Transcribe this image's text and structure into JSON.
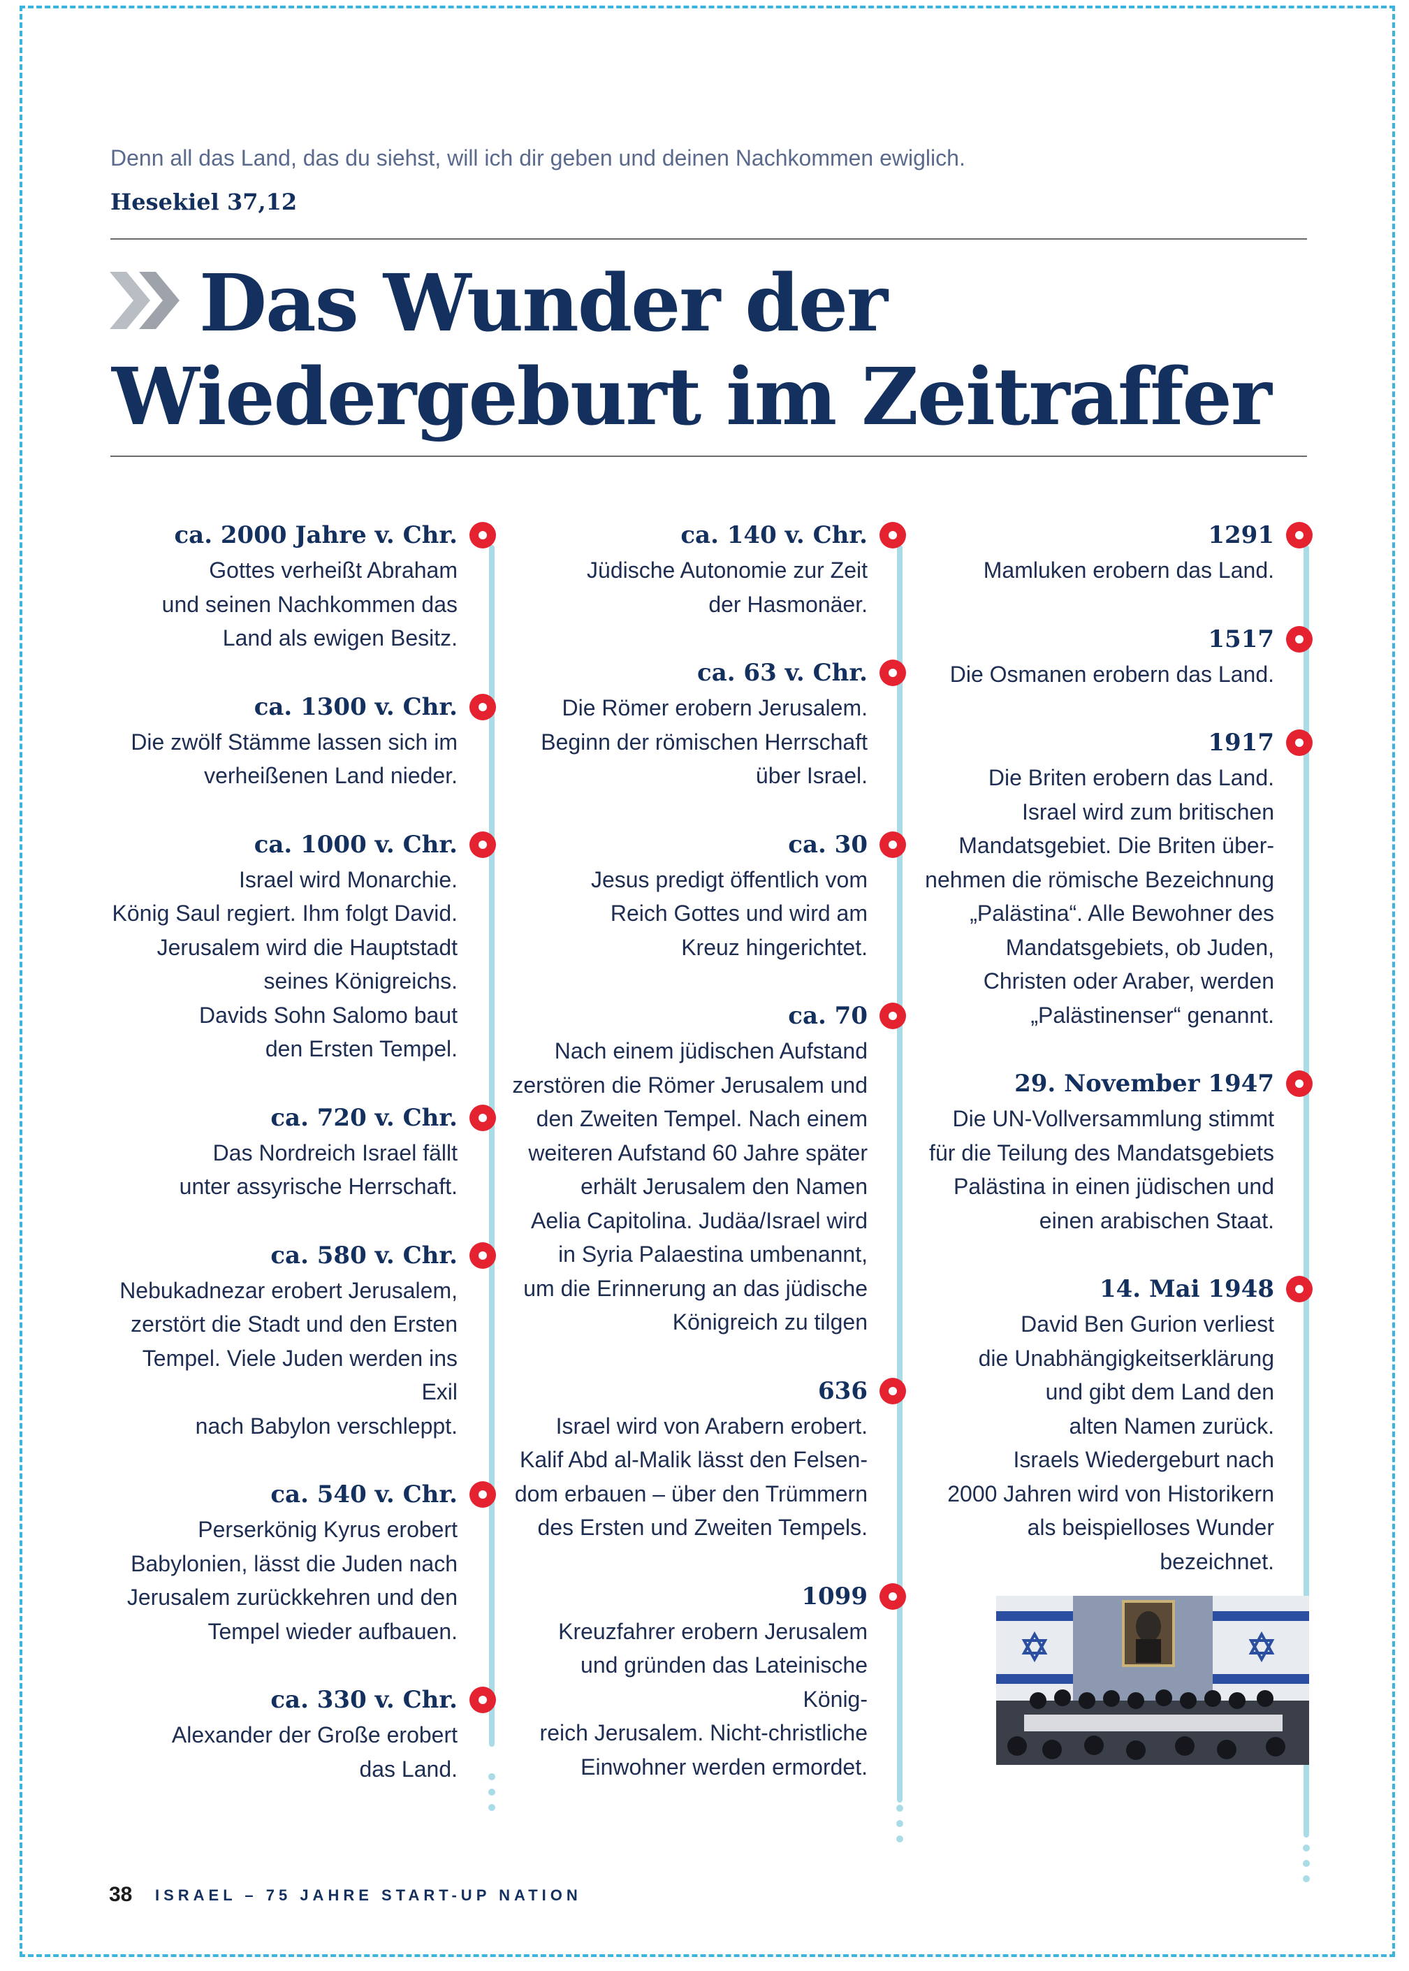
{
  "quote": {
    "text": "Denn all das Land, das du siehst, will ich dir geben und deinen Nachkommen ewiglich.",
    "reference": "Hesekiel 37,12"
  },
  "title": {
    "line1": "Das Wunder der",
    "line2": "Wiedergeburt im Zeitraffer"
  },
  "columns": [
    [
      {
        "date": "ca. 2000 Jahre v. Chr.",
        "text": "Gottes verheißt Abraham\nund seinen Nachkommen das\nLand als ewigen Besitz."
      },
      {
        "date": "ca. 1300 v. Chr.",
        "text": "Die zwölf Stämme lassen sich im\nverheißenen Land nieder."
      },
      {
        "date": "ca. 1000  v. Chr.",
        "text": "Israel wird Monarchie.\nKönig Saul regiert. Ihm folgt David.\nJerusalem wird die Hauptstadt\nseines Königreichs.\nDavids Sohn Salomo baut\nden Ersten Tempel."
      },
      {
        "date": "ca. 720 v. Chr.",
        "text": "Das Nordreich Israel  fällt\nunter assyrische Herrschaft."
      },
      {
        "date": "ca. 580 v. Chr.",
        "text": "Nebukadnezar erobert Jerusalem,\nzerstört die Stadt und den Ersten\nTempel. Viele Juden werden ins Exil\nnach Babylon verschleppt."
      },
      {
        "date": "ca. 540 v. Chr.",
        "text": "Perserkönig Kyrus erobert\nBabylonien, lässt die Juden nach\nJerusalem zurückkehren und den\nTempel wieder aufbauen."
      },
      {
        "date": "ca. 330 v. Chr.",
        "text": "Alexander der Große erobert\ndas Land."
      }
    ],
    [
      {
        "date": "ca. 140 v. Chr.",
        "text": "Jüdische Autonomie zur Zeit\nder Hasmonäer."
      },
      {
        "date": "ca. 63 v. Chr.",
        "text": "Die Römer erobern Jerusalem.\nBeginn der römischen Herrschaft\nüber Israel."
      },
      {
        "date": "ca. 30",
        "text": "Jesus predigt öffentlich vom\nReich Gottes und wird am\nKreuz hingerichtet."
      },
      {
        "date": "ca. 70",
        "text": "Nach einem jüdischen Aufstand\nzerstören die Römer Jerusalem und\nden Zweiten Tempel. Nach einem\nweiteren Aufstand 60 Jahre später\nerhält Jerusalem den Namen\nAelia Capitolina. Judäa/Israel wird\nin Syria Palaestina umbenannt,\num die Erinnerung an das jüdische\nKönigreich zu tilgen"
      },
      {
        "date": "636",
        "text": "Israel wird von Arabern erobert.\nKalif Abd al-Malik lässt den Felsen-\ndom erbauen – über den Trümmern\ndes Ersten und Zweiten Tempels."
      },
      {
        "date": "1099",
        "text": "Kreuzfahrer erobern Jerusalem\nund gründen das Lateinische König-\nreich Jerusalem. Nicht-christliche\nEinwohner werden ermordet."
      }
    ],
    [
      {
        "date": "1291",
        "text": "Mamluken erobern das Land."
      },
      {
        "date": "1517",
        "text": "Die Osmanen erobern das Land."
      },
      {
        "date": "1917",
        "text": "Die Briten erobern das Land.\nIsrael wird zum britischen\nMandatsgebiet. Die Briten über-\nnehmen die römische Bezeichnung\n„Palästina“. Alle Bewohner des\nMandatsgebiets, ob Juden,\nChristen oder Araber, werden\n„Palästinenser“ genannt."
      },
      {
        "date": "29. November 1947",
        "text": "Die UN-Vollversammlung stimmt\nfür die Teilung des Mandatsgebiets\nPalästina in einen jüdischen und\neinen arabischen Staat."
      },
      {
        "date": "14. Mai 1948",
        "text": "David Ben Gurion verliest\ndie Unabhängigkeitserklärung\nund gibt dem Land den\nalten Namen zurück.\nIsraels Wiedergeburt nach\n2000 Jahren wird von Historikern\nals beispielloses Wunder\nbezeichnet."
      }
    ]
  ],
  "footer": {
    "page_number": "38",
    "publication": "ISRAEL – 75 JAHRE START-UP NATION"
  },
  "colors": {
    "navy": "#13305e",
    "marker_red": "#e52330",
    "timeline_blue": "#a9dce6",
    "frame_blue": "#3cb4e0"
  }
}
